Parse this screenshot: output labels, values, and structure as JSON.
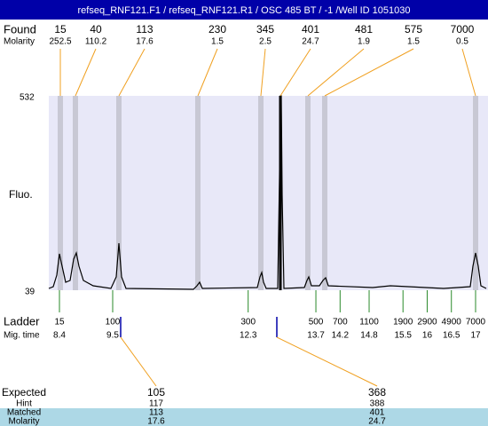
{
  "header": {
    "title": "refseq_RNF121.F1 / refseq_RNF121.R1 / OSC 485 BT / -1 /Well ID 1051030"
  },
  "found": {
    "label": "Found",
    "molarity_label": "Molarity",
    "peaks": [
      {
        "size": "15",
        "molarity": "252.5"
      },
      {
        "size": "40",
        "molarity": "110.2"
      },
      {
        "size": "113",
        "molarity": "17.6"
      },
      {
        "size": "230",
        "molarity": "1.5"
      },
      {
        "size": "345",
        "molarity": "2.5"
      },
      {
        "size": "401",
        "molarity": "24.7"
      },
      {
        "size": "481",
        "molarity": "1.9"
      },
      {
        "size": "575",
        "molarity": "1.5"
      },
      {
        "size": "7000",
        "molarity": "0.5"
      }
    ]
  },
  "axis": {
    "label": "Fluo.",
    "max": "532",
    "min": "39"
  },
  "ladder": {
    "label": "Ladder",
    "time_label": "Mig. time",
    "sizes": [
      15,
      100,
      300,
      500,
      700,
      1100,
      1900,
      2900,
      4900,
      7000
    ],
    "times": [
      8.4,
      9.5,
      12.3,
      13.7,
      14.2,
      14.8,
      15.5,
      16,
      16.5,
      17
    ]
  },
  "expected": {
    "labels": [
      "Expected",
      "Hint",
      "Matched",
      "Molarity"
    ],
    "columns": [
      {
        "expected": "105",
        "hint": "117",
        "matched": "113",
        "molarity": "17.6"
      },
      {
        "expected": "368",
        "hint": "388",
        "matched": "401",
        "molarity": "24.7"
      }
    ]
  }
}
